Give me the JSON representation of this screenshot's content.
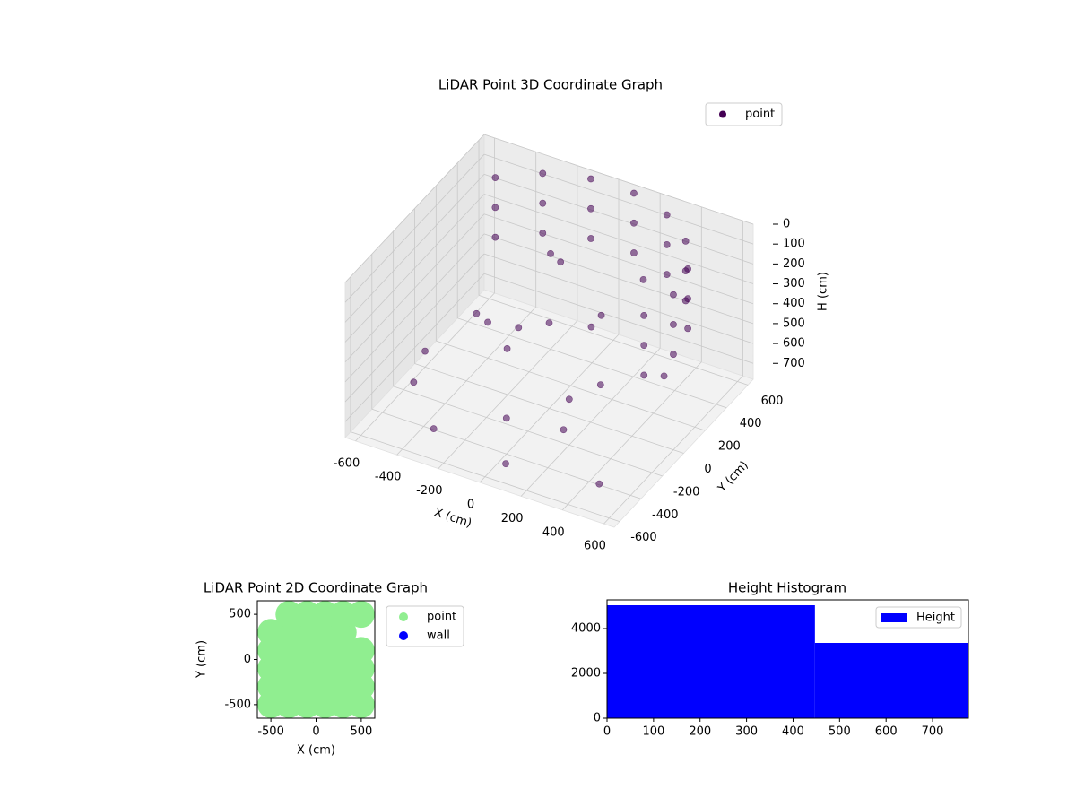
{
  "chart_data": [
    {
      "type": "scatter3d",
      "title": "LiDAR Point 3D Coordinate Graph",
      "xlabel": "X (cm)",
      "ylabel": "Y (cm)",
      "zlabel": "H (cm)",
      "xlim": [
        -650,
        650
      ],
      "ylim": [
        -650,
        650
      ],
      "zlim": [
        780,
        0
      ],
      "xticks": [
        -600,
        -400,
        -200,
        0,
        200,
        400,
        600
      ],
      "yticks": [
        -600,
        -400,
        -200,
        0,
        200,
        400,
        600
      ],
      "zticks": [
        0,
        100,
        200,
        300,
        400,
        500,
        600,
        700
      ],
      "grid": true,
      "legend": "upper right",
      "series": [
        {
          "name": "point",
          "color": "#440154",
          "x": [
            564,
            600,
            564,
            460,
            300,
            104,
            -104,
            -300,
            -460,
            564,
            600,
            564,
            460,
            300,
            104,
            -104,
            -300,
            -460,
            564,
            600,
            564,
            460,
            300,
            104,
            -104,
            -300,
            -460,
            -500,
            -300,
            0,
            200,
            -200,
            100,
            300,
            -400,
            400,
            -100,
            0,
            200,
            -300,
            500,
            -600,
            100,
            -200,
            300,
            -100,
            250
          ],
          "y": [
            -205,
            0,
            205,
            386,
            520,
            591,
            591,
            520,
            386,
            -205,
            0,
            205,
            386,
            520,
            591,
            591,
            520,
            386,
            -205,
            0,
            205,
            386,
            520,
            591,
            591,
            520,
            386,
            -300,
            -500,
            -400,
            -200,
            100,
            200,
            -100,
            200,
            300,
            -200,
            0,
            100,
            -100,
            -500,
            0,
            -600,
            400,
            300,
            300,
            -350
          ],
          "z": [
            0,
            0,
            0,
            0,
            0,
            0,
            0,
            0,
            0,
            150,
            150,
            150,
            150,
            150,
            150,
            150,
            150,
            150,
            300,
            300,
            300,
            300,
            300,
            300,
            300,
            300,
            300,
            650,
            700,
            600,
            550,
            500,
            450,
            500,
            600,
            650,
            400,
            350,
            300,
            350,
            700,
            700,
            680,
            300,
            200,
            250,
            600
          ]
        }
      ]
    },
    {
      "type": "scatter",
      "title": "LiDAR Point 2D Coordinate Graph",
      "xlabel": "X (cm)",
      "ylabel": "Y (cm)",
      "xlim": [
        -650,
        650
      ],
      "ylim": [
        -650,
        650
      ],
      "xticks": [
        -500,
        0,
        500
      ],
      "yticks": [
        -500,
        0,
        500
      ],
      "legend": "outside upper right",
      "series": [
        {
          "name": "point",
          "color": "#90ee90",
          "x": [
            -500,
            -300,
            -100,
            100,
            300,
            500,
            -500,
            -300,
            -100,
            100,
            300,
            500,
            -500,
            -300,
            -100,
            100,
            300,
            500,
            -500,
            -300,
            -100,
            100,
            300,
            500,
            -500,
            -300,
            -100,
            100,
            300,
            -300,
            -100,
            100,
            300,
            500
          ],
          "y": [
            -500,
            -500,
            -500,
            -500,
            -500,
            -500,
            -300,
            -300,
            -300,
            -300,
            -300,
            -300,
            -100,
            -100,
            -100,
            -100,
            -100,
            -100,
            100,
            100,
            100,
            100,
            100,
            100,
            300,
            300,
            300,
            300,
            300,
            500,
            500,
            500,
            500,
            500
          ]
        },
        {
          "name": "wall",
          "color": "#0000ff",
          "x": [],
          "y": []
        }
      ]
    },
    {
      "type": "histogram",
      "title": "Height Histogram",
      "bins": [
        0,
        447,
        777
      ],
      "values": [
        5040,
        3360
      ],
      "name": "Height",
      "color": "#0000ff",
      "xlim": [
        0,
        777
      ],
      "ylim": [
        0,
        5280
      ],
      "xticks": [
        0,
        100,
        200,
        300,
        400,
        500,
        600,
        700
      ],
      "yticks": [
        0,
        2000,
        4000
      ],
      "legend": "upper right"
    }
  ]
}
